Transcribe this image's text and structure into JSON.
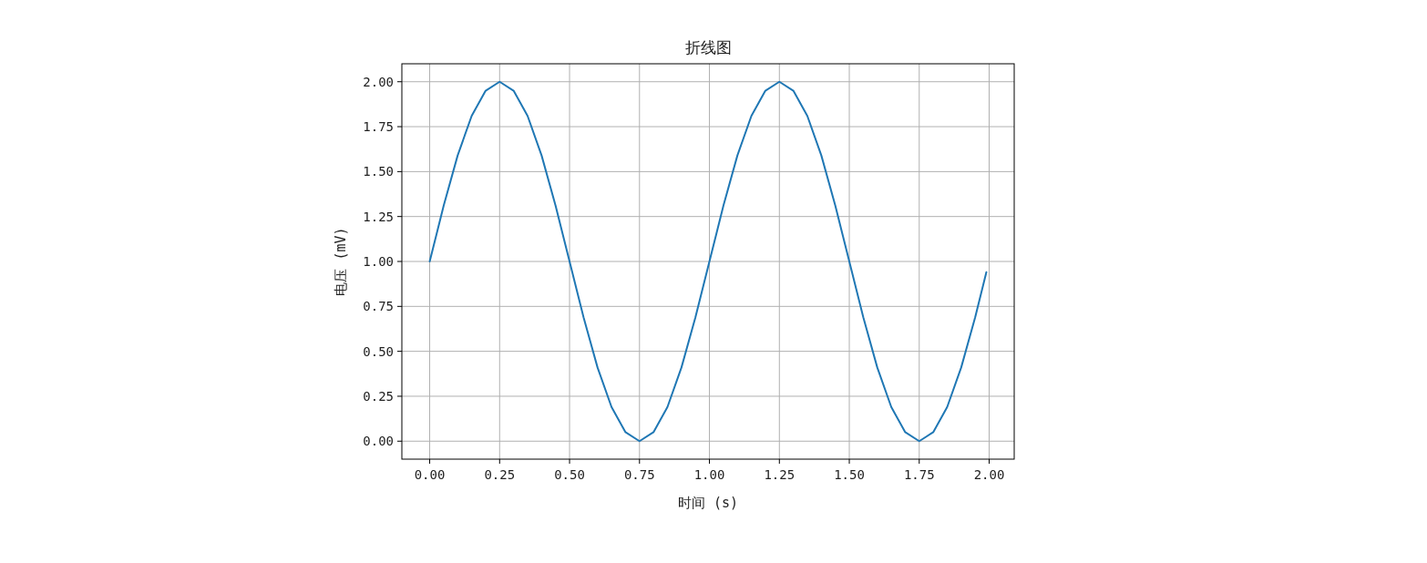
{
  "chart_data": {
    "type": "line",
    "title": "折线图",
    "xlabel": "时间 (s)",
    "ylabel": "电压 (mV)",
    "xlim": [
      -0.0995,
      2.0895
    ],
    "ylim": [
      -0.1,
      2.1
    ],
    "xticks": [
      {
        "value": 0,
        "label": "0.00"
      },
      {
        "value": 0.25,
        "label": "0.25"
      },
      {
        "value": 0.5,
        "label": "0.50"
      },
      {
        "value": 0.75,
        "label": "0.75"
      },
      {
        "value": 1,
        "label": "1.00"
      },
      {
        "value": 1.25,
        "label": "1.25"
      },
      {
        "value": 1.5,
        "label": "1.50"
      },
      {
        "value": 1.75,
        "label": "1.75"
      },
      {
        "value": 2,
        "label": "2.00"
      }
    ],
    "yticks": [
      {
        "value": 0,
        "label": "0.00"
      },
      {
        "value": 0.25,
        "label": "0.25"
      },
      {
        "value": 0.5,
        "label": "0.50"
      },
      {
        "value": 0.75,
        "label": "0.75"
      },
      {
        "value": 1,
        "label": "1.00"
      },
      {
        "value": 1.25,
        "label": "1.25"
      },
      {
        "value": 1.5,
        "label": "1.50"
      },
      {
        "value": 1.75,
        "label": "1.75"
      },
      {
        "value": 2,
        "label": "2.00"
      }
    ],
    "grid": true,
    "series": [
      {
        "color": "#1f77b4",
        "x": [
          0,
          0.05,
          0.1,
          0.15,
          0.2,
          0.25,
          0.3,
          0.35,
          0.4,
          0.45,
          0.5,
          0.55,
          0.6,
          0.65,
          0.7,
          0.75,
          0.8,
          0.85,
          0.9,
          0.95,
          1,
          1.05,
          1.1,
          1.15,
          1.2,
          1.25,
          1.3,
          1.35,
          1.4,
          1.45,
          1.5,
          1.55,
          1.6,
          1.65,
          1.7,
          1.75,
          1.8,
          1.85,
          1.9,
          1.95,
          1.99
        ],
        "values": [
          1.0,
          1.31,
          1.59,
          1.81,
          1.95,
          2.0,
          1.95,
          1.81,
          1.59,
          1.31,
          1.0,
          0.69,
          0.41,
          0.19,
          0.05,
          0.0,
          0.05,
          0.19,
          0.41,
          0.69,
          1.0,
          1.31,
          1.59,
          1.81,
          1.95,
          2.0,
          1.95,
          1.81,
          1.59,
          1.31,
          1.0,
          0.69,
          0.41,
          0.19,
          0.05,
          0.0,
          0.05,
          0.19,
          0.41,
          0.69,
          0.94
        ]
      }
    ]
  }
}
